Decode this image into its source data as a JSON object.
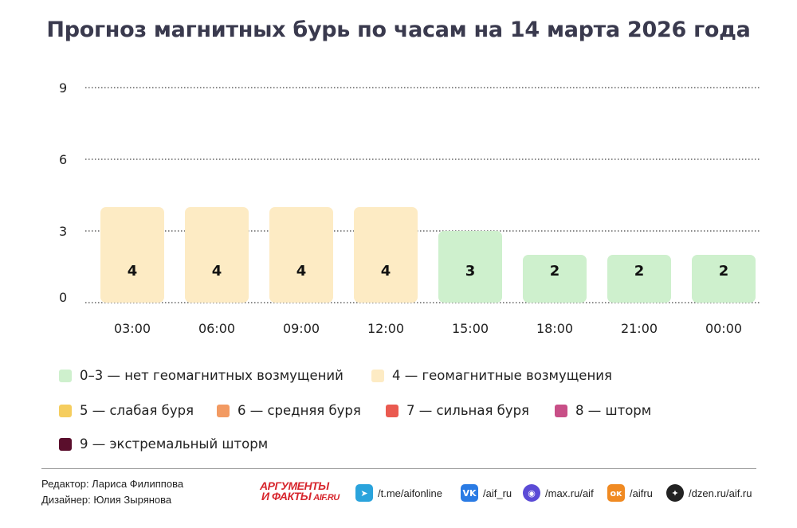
{
  "chart_data": {
    "type": "bar",
    "title": "Прогноз магнитных бурь по часам на 14 марта 2026 года",
    "categories": [
      "03:00",
      "06:00",
      "09:00",
      "12:00",
      "15:00",
      "18:00",
      "21:00",
      "00:00"
    ],
    "values": [
      4,
      4,
      4,
      4,
      3,
      2,
      2,
      2
    ],
    "ylim": [
      0,
      9
    ],
    "yticks": [
      0,
      3,
      6,
      9
    ],
    "grid": "dotted horizontal",
    "xlabel": "",
    "ylabel": "",
    "legend": [
      {
        "label": "0–3 — нет геомагнитных возмущений",
        "color": "#cef0cd"
      },
      {
        "label": "4 — геомагнитные возмущения",
        "color": "#fdebc4"
      },
      {
        "label": "5 — слабая буря",
        "color": "#f5cd5e"
      },
      {
        "label": "6 — средняя буря",
        "color": "#f29a62"
      },
      {
        "label": "7 — сильная буря",
        "color": "#ea5a50"
      },
      {
        "label": "8 — шторм",
        "color": "#c84f87"
      },
      {
        "label": "9 — экстремальный шторм",
        "color": "#5a0e2c"
      }
    ],
    "legend_position": "bottom"
  },
  "footer": {
    "editor": "Редактор: Лариса Филиппова",
    "designer": "Дизайнер: Юлия Зырянова",
    "logo_line1": "АРГУМЕНТЫ",
    "logo_line2": "И ФАКТЫ",
    "logo_site": "AIF.RU",
    "socials": [
      {
        "icon": "telegram-icon",
        "text": "/t.me/aifonline",
        "color": "#2aa3dc"
      },
      {
        "icon": "vk-icon",
        "text": "/aif_ru",
        "color": "#2a7be4"
      },
      {
        "icon": "max-icon",
        "text": "/max.ru/aif",
        "color": "#5b4bd6"
      },
      {
        "icon": "odnoklassniki-icon",
        "text": "/aifru",
        "color": "#f08a22"
      },
      {
        "icon": "dzen-icon",
        "text": "/dzen.ru/aif.ru",
        "color": "#222222"
      }
    ]
  }
}
